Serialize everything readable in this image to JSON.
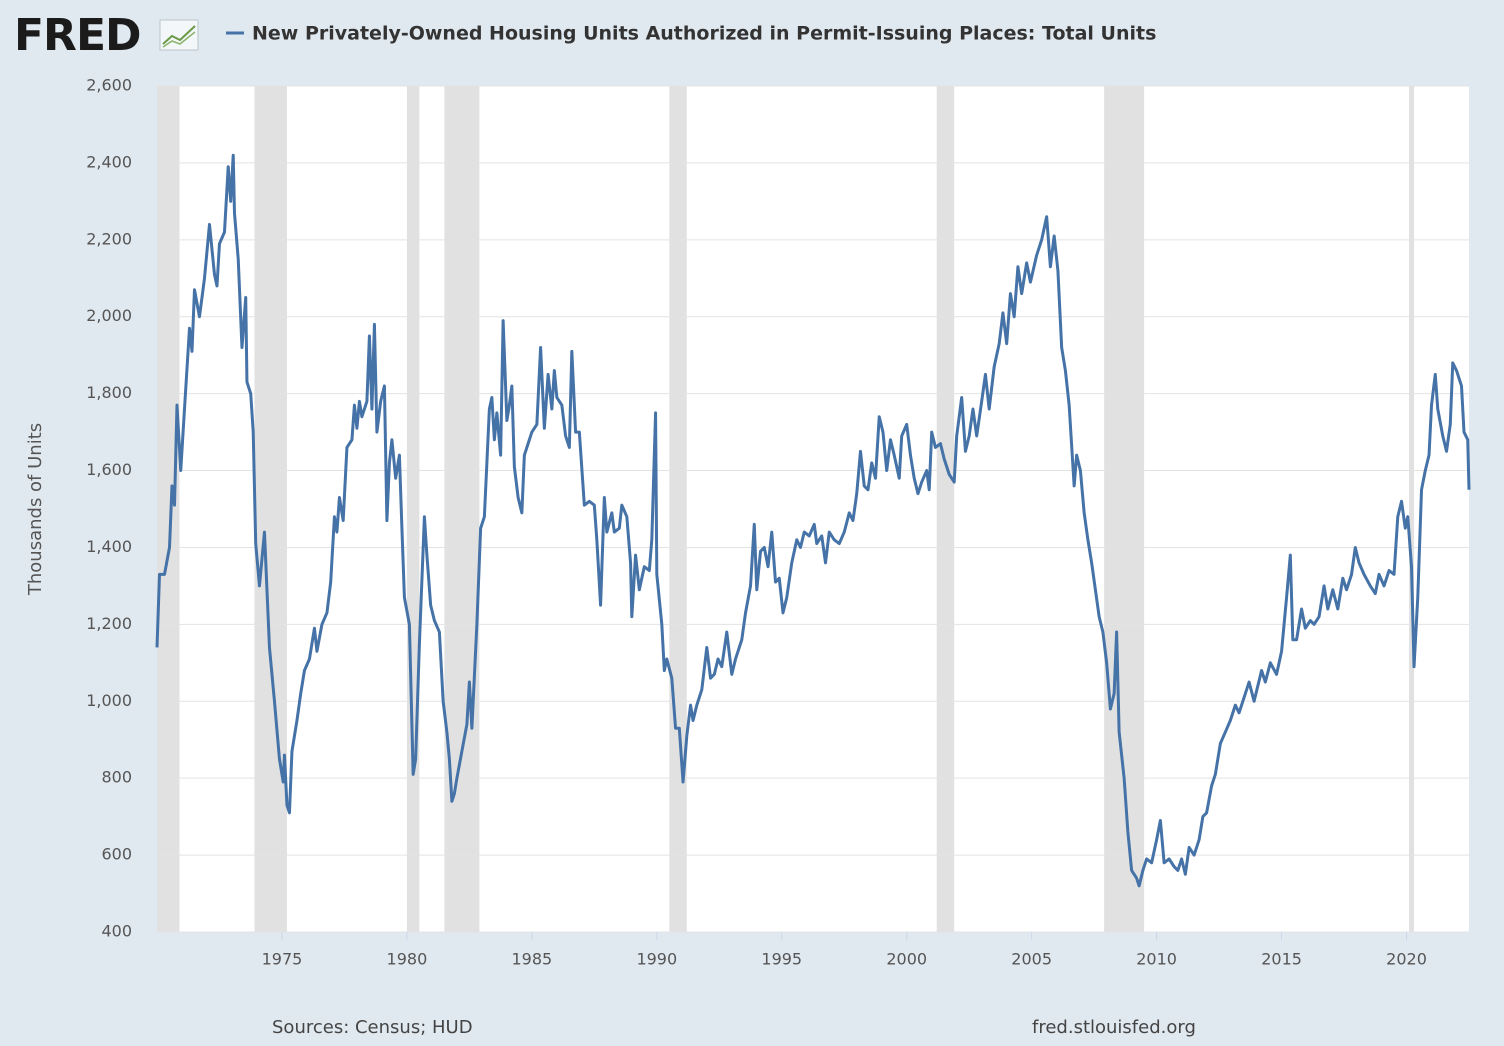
{
  "chart_data": {
    "type": "line",
    "brand": "FRED",
    "ylabel": "Thousands of Units",
    "source": "Sources: Census; HUD",
    "site": "fred.stlouisfed.org",
    "xlim": [
      1970,
      2022.5
    ],
    "xticks": [
      1975,
      1980,
      1985,
      1990,
      1995,
      2000,
      2005,
      2010,
      2015,
      2020
    ],
    "ylim": [
      400,
      2600
    ],
    "yticks": [
      {
        "value": 400,
        "label": "400"
      },
      {
        "value": 600,
        "label": "600"
      },
      {
        "value": 800,
        "label": "800"
      },
      {
        "value": 1000,
        "label": "1,000"
      },
      {
        "value": 1200,
        "label": "1,200"
      },
      {
        "value": 1400,
        "label": "1,400"
      },
      {
        "value": 1600,
        "label": "1,600"
      },
      {
        "value": 1800,
        "label": "1,800"
      },
      {
        "value": 2000,
        "label": "2,000"
      },
      {
        "value": 2200,
        "label": "2,200"
      },
      {
        "value": 2400,
        "label": "2,400"
      },
      {
        "value": 2600,
        "label": "2,600"
      }
    ],
    "grid": true,
    "recession_color": "#e1e1e1",
    "recessions": [
      [
        1970.0,
        1970.9
      ],
      [
        1973.9,
        1975.2
      ],
      [
        1980.0,
        1980.5
      ],
      [
        1981.5,
        1982.9
      ],
      [
        1990.5,
        1991.2
      ],
      [
        2001.2,
        2001.9
      ],
      [
        2007.9,
        2009.5
      ],
      [
        2020.1,
        2020.3
      ]
    ],
    "x": [
      1970.0,
      1970.1,
      1970.3,
      1970.5,
      1970.6,
      1970.7,
      1970.8,
      1970.95,
      1971.1,
      1971.3,
      1971.4,
      1971.5,
      1971.7,
      1971.9,
      1972.1,
      1972.3,
      1972.4,
      1972.5,
      1972.7,
      1972.85,
      1972.95,
      1973.05,
      1973.1,
      1973.25,
      1973.4,
      1973.55,
      1973.6,
      1973.75,
      1973.85,
      1973.95,
      1974.1,
      1974.3,
      1974.5,
      1974.7,
      1974.9,
      1975.05,
      1975.1,
      1975.2,
      1975.3,
      1975.4,
      1975.6,
      1975.75,
      1975.9,
      1976.1,
      1976.3,
      1976.4,
      1976.6,
      1976.8,
      1976.95,
      1977.1,
      1977.2,
      1977.3,
      1977.45,
      1977.6,
      1977.8,
      1977.9,
      1978.0,
      1978.1,
      1978.2,
      1978.4,
      1978.5,
      1978.6,
      1978.7,
      1978.8,
      1978.95,
      1979.1,
      1979.2,
      1979.3,
      1979.4,
      1979.55,
      1979.7,
      1979.8,
      1979.9,
      1980.1,
      1980.25,
      1980.35,
      1980.5,
      1980.7,
      1980.8,
      1980.95,
      1981.1,
      1981.3,
      1981.45,
      1981.6,
      1981.7,
      1981.8,
      1981.9,
      1982.0,
      1982.2,
      1982.4,
      1982.5,
      1982.6,
      1982.8,
      1982.95,
      1983.1,
      1983.3,
      1983.4,
      1983.5,
      1983.6,
      1983.75,
      1983.85,
      1984.0,
      1984.1,
      1984.2,
      1984.3,
      1984.45,
      1984.6,
      1984.7,
      1984.85,
      1985.0,
      1985.2,
      1985.35,
      1985.5,
      1985.65,
      1985.8,
      1985.9,
      1986.0,
      1986.2,
      1986.35,
      1986.5,
      1986.6,
      1986.75,
      1986.9,
      1987.1,
      1987.3,
      1987.5,
      1987.6,
      1987.75,
      1987.9,
      1988.0,
      1988.2,
      1988.3,
      1988.5,
      1988.6,
      1988.8,
      1988.95,
      1989.0,
      1989.15,
      1989.3,
      1989.5,
      1989.7,
      1989.8,
      1989.95,
      1990.0,
      1990.2,
      1990.3,
      1990.4,
      1990.6,
      1990.75,
      1990.9,
      1991.05,
      1991.2,
      1991.35,
      1991.45,
      1991.6,
      1991.8,
      1992.0,
      1992.15,
      1992.3,
      1992.45,
      1992.6,
      1992.8,
      1993.0,
      1993.15,
      1993.4,
      1993.55,
      1993.75,
      1993.9,
      1994.0,
      1994.15,
      1994.3,
      1994.45,
      1994.6,
      1994.75,
      1994.9,
      1995.05,
      1995.2,
      1995.4,
      1995.6,
      1995.75,
      1995.9,
      1996.1,
      1996.3,
      1996.4,
      1996.6,
      1996.75,
      1996.9,
      1997.1,
      1997.3,
      1997.5,
      1997.7,
      1997.85,
      1998.0,
      1998.15,
      1998.3,
      1998.45,
      1998.6,
      1998.75,
      1998.9,
      1999.05,
      1999.2,
      1999.35,
      1999.5,
      1999.7,
      1999.8,
      2000.0,
      2000.15,
      2000.3,
      2000.45,
      2000.6,
      2000.8,
      2000.9,
      2001.0,
      2001.15,
      2001.35,
      2001.5,
      2001.7,
      2001.9,
      2002.0,
      2002.2,
      2002.35,
      2002.5,
      2002.65,
      2002.8,
      2003.0,
      2003.15,
      2003.3,
      2003.5,
      2003.7,
      2003.85,
      2004.0,
      2004.15,
      2004.3,
      2004.45,
      2004.6,
      2004.8,
      2004.95,
      2005.2,
      2005.4,
      2005.6,
      2005.75,
      2005.9,
      2006.05,
      2006.2,
      2006.35,
      2006.5,
      2006.7,
      2006.8,
      2006.95,
      2007.1,
      2007.25,
      2007.4,
      2007.55,
      2007.7,
      2007.85,
      2008.0,
      2008.15,
      2008.3,
      2008.4,
      2008.5,
      2008.7,
      2008.85,
      2009.0,
      2009.2,
      2009.3,
      2009.45,
      2009.6,
      2009.8,
      2010.0,
      2010.15,
      2010.3,
      2010.5,
      2010.7,
      2010.85,
      2011.0,
      2011.15,
      2011.3,
      2011.5,
      2011.7,
      2011.85,
      2012.0,
      2012.2,
      2012.35,
      2012.55,
      2012.75,
      2012.95,
      2013.15,
      2013.3,
      2013.5,
      2013.7,
      2013.9,
      2014.05,
      2014.2,
      2014.35,
      2014.55,
      2014.8,
      2015.0,
      2015.2,
      2015.35,
      2015.45,
      2015.6,
      2015.8,
      2015.95,
      2016.15,
      2016.3,
      2016.5,
      2016.7,
      2016.85,
      2017.05,
      2017.25,
      2017.45,
      2017.6,
      2017.8,
      2017.95,
      2018.1,
      2018.3,
      2018.55,
      2018.75,
      2018.9,
      2019.1,
      2019.3,
      2019.5,
      2019.65,
      2019.8,
      2019.95,
      2020.05,
      2020.2,
      2020.3,
      2020.45,
      2020.6,
      2020.75,
      2020.9,
      2021.0,
      2021.15,
      2021.25,
      2021.45,
      2021.6,
      2021.75,
      2021.85,
      2022.0,
      2022.2,
      2022.3,
      2022.45,
      2022.5
    ],
    "series": [
      {
        "name": "New Privately-Owned Housing Units Authorized in Permit-Issuing Places: Total Units",
        "color": "#4572a7",
        "values": [
          1140,
          1330,
          1330,
          1400,
          1560,
          1510,
          1770,
          1600,
          1760,
          1970,
          1910,
          2070,
          2000,
          2100,
          2240,
          2110,
          2080,
          2190,
          2220,
          2390,
          2300,
          2420,
          2270,
          2150,
          1920,
          2050,
          1830,
          1800,
          1700,
          1410,
          1300,
          1440,
          1140,
          1000,
          850,
          790,
          860,
          730,
          710,
          870,
          950,
          1020,
          1080,
          1110,
          1190,
          1130,
          1200,
          1230,
          1310,
          1480,
          1440,
          1530,
          1470,
          1660,
          1680,
          1770,
          1710,
          1780,
          1740,
          1780,
          1950,
          1760,
          1980,
          1700,
          1780,
          1820,
          1470,
          1620,
          1680,
          1580,
          1640,
          1450,
          1270,
          1200,
          810,
          850,
          1150,
          1480,
          1380,
          1250,
          1210,
          1180,
          1000,
          920,
          850,
          740,
          760,
          800,
          870,
          940,
          1050,
          930,
          1200,
          1450,
          1480,
          1760,
          1790,
          1680,
          1750,
          1640,
          1990,
          1730,
          1770,
          1820,
          1610,
          1530,
          1490,
          1640,
          1670,
          1700,
          1720,
          1920,
          1710,
          1850,
          1760,
          1860,
          1790,
          1770,
          1690,
          1660,
          1910,
          1700,
          1700,
          1510,
          1520,
          1510,
          1420,
          1250,
          1530,
          1440,
          1490,
          1440,
          1450,
          1510,
          1480,
          1360,
          1220,
          1380,
          1290,
          1350,
          1340,
          1420,
          1750,
          1330,
          1200,
          1080,
          1110,
          1060,
          930,
          930,
          790,
          910,
          990,
          950,
          990,
          1030,
          1140,
          1060,
          1070,
          1110,
          1090,
          1180,
          1070,
          1110,
          1160,
          1230,
          1300,
          1460,
          1290,
          1390,
          1400,
          1350,
          1440,
          1310,
          1320,
          1230,
          1270,
          1360,
          1420,
          1400,
          1440,
          1430,
          1460,
          1410,
          1430,
          1360,
          1440,
          1420,
          1410,
          1440,
          1490,
          1470,
          1540,
          1650,
          1560,
          1550,
          1620,
          1580,
          1740,
          1700,
          1600,
          1680,
          1640,
          1580,
          1690,
          1720,
          1640,
          1580,
          1540,
          1570,
          1600,
          1550,
          1700,
          1660,
          1670,
          1630,
          1590,
          1570,
          1690,
          1790,
          1650,
          1690,
          1760,
          1690,
          1780,
          1850,
          1760,
          1870,
          1930,
          2010,
          1930,
          2060,
          2000,
          2130,
          2060,
          2140,
          2090,
          2160,
          2200,
          2260,
          2130,
          2210,
          2120,
          1920,
          1860,
          1770,
          1560,
          1640,
          1600,
          1490,
          1420,
          1360,
          1290,
          1220,
          1180,
          1100,
          980,
          1020,
          1180,
          920,
          800,
          660,
          560,
          540,
          520,
          560,
          590,
          580,
          640,
          690,
          580,
          590,
          570,
          560,
          590,
          550,
          620,
          600,
          640,
          700,
          710,
          780,
          810,
          890,
          920,
          950,
          990,
          970,
          1010,
          1050,
          1000,
          1040,
          1080,
          1050,
          1100,
          1070,
          1130,
          1270,
          1380,
          1160,
          1160,
          1240,
          1190,
          1210,
          1200,
          1220,
          1300,
          1240,
          1290,
          1240,
          1320,
          1290,
          1330,
          1400,
          1360,
          1330,
          1300,
          1280,
          1330,
          1300,
          1340,
          1330,
          1480,
          1520,
          1450,
          1480,
          1350,
          1090,
          1270,
          1550,
          1600,
          1640,
          1770,
          1850,
          1760,
          1690,
          1650,
          1720,
          1880,
          1860,
          1820,
          1700,
          1680,
          1550
        ]
      }
    ]
  }
}
